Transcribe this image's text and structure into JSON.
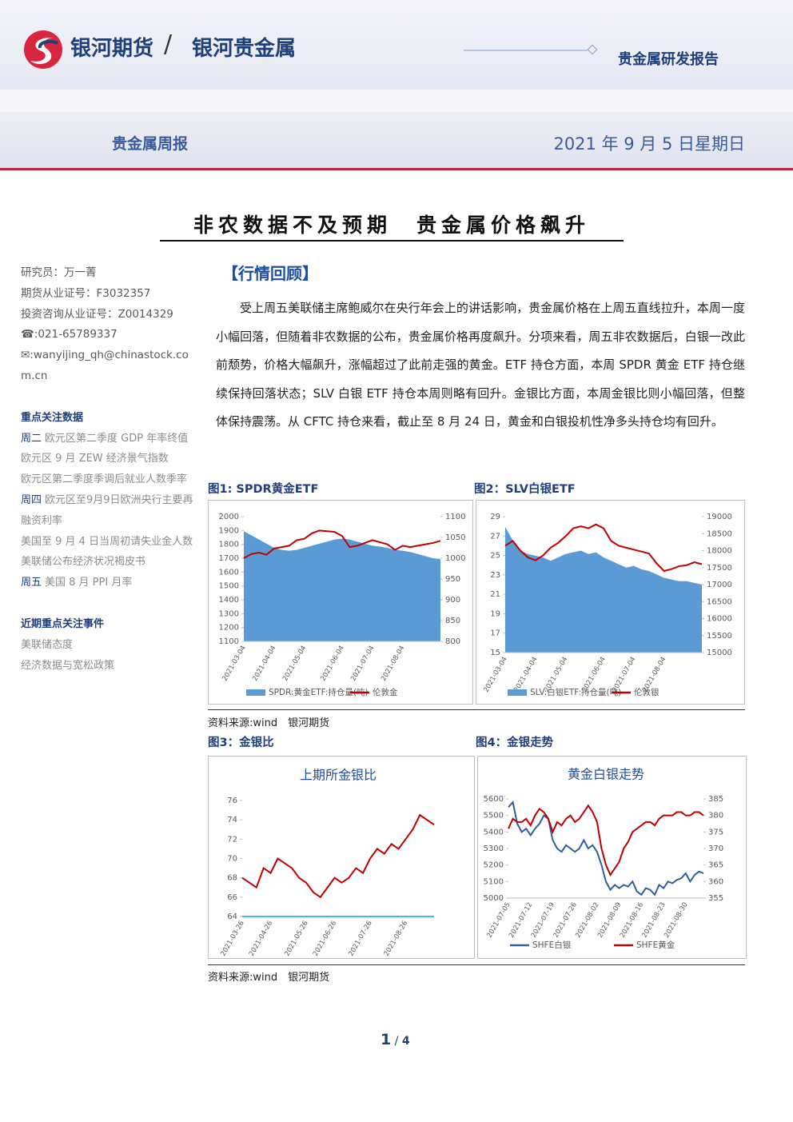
{
  "header": {
    "brand": "银河期货",
    "sub_brand": "银河贵金属",
    "report_type": "贵金属研发报告",
    "report_name": "贵金属周报",
    "date": "2021 年 9 月 5 日星期日"
  },
  "title": "非农数据不及预期　贵金属价格飙升",
  "sidebar": {
    "researcher": [
      "研究员：万一菁",
      "期货从业证号：F3032357",
      "投资咨询从业证号：Z0014329",
      "☎:021-65789337",
      "✉:wanyijing_qh@chinastock.com.cn"
    ],
    "focus_title": "重点关注数据",
    "focus_items": [
      {
        "day": "周二",
        "text": "欧元区第二季度 GDP 年率终值"
      },
      {
        "text": "欧元区 9 月 ZEW 经济景气指数"
      },
      {
        "text": "欧元区第二季度季调后就业人数季率"
      },
      {
        "day": "周四",
        "text": "欧元区至9月9日欧洲央行主要再融资利率"
      },
      {
        "text": "美国至 9 月 4 日当周初请失业金人数"
      },
      {
        "text": "美联储公布经济状况褐皮书"
      },
      {
        "day": "周五",
        "text": "美国 8 月 PPI 月率"
      }
    ],
    "events_title": "近期重点关注事件",
    "events": [
      "美联储态度",
      "经济数据与宽松政策"
    ]
  },
  "section": {
    "heading": "【行情回顾】",
    "paragraph": "受上周五美联储主席鲍威尔在央行年会上的讲话影响，贵金属价格在上周五直线拉升，本周一度小幅回落，但随着非农数据的公布，贵金属价格再度飙升。分项来看，周五非农数据后，白银一改此前颓势，价格大幅飙升，涨幅超过了此前走强的黄金。ETF 持仓方面，本周 SPDR 黄金 ETF 持仓继续保持回落状态；SLV 白银 ETF 持仓本周则略有回升。金银比方面，本周金银比则小幅回落，但整体保持震荡。从 CFTC 持仓来看，截止至 8 月 24 日，黄金和白银投机性净多头持仓均有回升。"
  },
  "figures": [
    {
      "label": "图1: SPDR黄金ETF",
      "chart": {
        "type": "combo",
        "categories": [
          "2021-03-04",
          null,
          null,
          null,
          "2021-04-04",
          null,
          null,
          null,
          "2021-05-04",
          null,
          null,
          null,
          null,
          "2021-06-04",
          null,
          null,
          null,
          "2021-07-04",
          null,
          null,
          null,
          "2021-08-04",
          null,
          null,
          null,
          null,
          null
        ],
        "ylim": [
          1100,
          2000
        ],
        "yticks": [
          1100,
          1200,
          1300,
          1400,
          1500,
          1600,
          1700,
          1800,
          1900,
          2000
        ],
        "y2lim": [
          800,
          1100
        ],
        "y2ticks": [
          800,
          850,
          900,
          950,
          1000,
          1050,
          1100
        ],
        "legend": "bottom",
        "series": [
          {
            "name": "SPDR:黄金ETF:持仓量(吨)",
            "type": "area",
            "axis": "y2",
            "color": "#5b9bd5",
            "values": [
              1065,
              1055,
              1045,
              1035,
              1025,
              1020,
              1018,
              1020,
              1025,
              1030,
              1035,
              1040,
              1045,
              1047,
              1045,
              1040,
              1035,
              1030,
              1028,
              1025,
              1020,
              1018,
              1015,
              1010,
              1005,
              1000,
              998
            ]
          },
          {
            "name": "伦敦金",
            "type": "line",
            "color": "#c00000",
            "values": [
              1700,
              1730,
              1740,
              1725,
              1770,
              1780,
              1790,
              1830,
              1840,
              1880,
              1900,
              1895,
              1890,
              1860,
              1780,
              1790,
              1810,
              1830,
              1815,
              1800,
              1760,
              1790,
              1780,
              1790,
              1800,
              1810,
              1825
            ]
          }
        ]
      }
    },
    {
      "label": "图2：SLV白银ETF",
      "chart": {
        "type": "combo",
        "categories": [
          "2021-03-04",
          null,
          null,
          null,
          "2021-04-04",
          null,
          null,
          null,
          "2021-05-04",
          null,
          null,
          null,
          null,
          "2021-06-04",
          null,
          null,
          null,
          "2021-07-04",
          null,
          null,
          null,
          "2021-08-04",
          null,
          null,
          null,
          null,
          null
        ],
        "ylim": [
          15,
          29
        ],
        "yticks": [
          15,
          17,
          19,
          21,
          23,
          25,
          27,
          29
        ],
        "y2lim": [
          15000,
          19000
        ],
        "y2ticks": [
          15000,
          15500,
          16000,
          16500,
          17000,
          17500,
          18000,
          18500,
          19000
        ],
        "legend": "bottom",
        "series": [
          {
            "name": "SLV:白银ETF:持仓量(吨)",
            "type": "area",
            "axis": "y2",
            "color": "#5b9bd5",
            "values": [
              18700,
              18300,
              18000,
              17900,
              17850,
              17800,
              17700,
              17800,
              17900,
              17950,
              18000,
              17900,
              17950,
              17800,
              17700,
              17600,
              17500,
              17550,
              17450,
              17400,
              17300,
              17200,
              17150,
              17100,
              17100,
              17050,
              17000
            ]
          },
          {
            "name": "伦敦银",
            "type": "line",
            "color": "#c00000",
            "values": [
              26.0,
              26.5,
              25.5,
              24.8,
              24.5,
              25.0,
              25.8,
              26.3,
              27.0,
              27.8,
              28.0,
              27.8,
              28.2,
              27.8,
              26.5,
              26.0,
              25.8,
              25.6,
              25.4,
              25.2,
              24.2,
              23.4,
              23.6,
              23.9,
              24.0,
              24.3,
              24.1
            ]
          }
        ]
      }
    },
    {
      "label": "图3：金银比",
      "chart": {
        "type": "line",
        "title": "上期所金银比",
        "axis_color": "#00b0c0",
        "categories": [
          "2021-03-26",
          null,
          null,
          null,
          "2021-04-26",
          null,
          null,
          null,
          null,
          "2021-05-26",
          null,
          null,
          null,
          "2021-06-26",
          null,
          null,
          null,
          null,
          "2021-07-26",
          null,
          null,
          null,
          null,
          "2021-08-26",
          null,
          null,
          null,
          null
        ],
        "ylim": [
          64,
          76
        ],
        "yticks": [
          64,
          66,
          68,
          70,
          72,
          74,
          76
        ],
        "series": [
          {
            "type": "line",
            "color": "#c00000",
            "values": [
              68,
              67.5,
              67,
              69,
              68.5,
              70,
              69.5,
              69,
              68,
              67.5,
              66.5,
              66,
              67,
              68,
              67.5,
              68,
              69,
              68.5,
              70,
              71,
              70.5,
              71.5,
              71,
              72,
              73,
              74.5,
              74,
              73.5
            ]
          }
        ]
      }
    },
    {
      "label": "图4：金银走势",
      "chart": {
        "type": "combo",
        "title": "黄金白银走势",
        "categories": [
          "2021-07-05",
          null,
          null,
          null,
          null,
          "2021-07-12",
          null,
          null,
          null,
          null,
          "2021-07-19",
          null,
          null,
          null,
          null,
          "2021-07-26",
          null,
          null,
          null,
          null,
          "2021-08-02",
          null,
          null,
          null,
          null,
          "2021-08-09",
          null,
          null,
          null,
          null,
          "2021-08-16",
          null,
          null,
          null,
          null,
          "2021-08-23",
          null,
          null,
          null,
          null,
          "2021-08-30",
          null,
          null,
          null,
          null
        ],
        "ylim": [
          5000,
          5600
        ],
        "yticks": [
          5000,
          5100,
          5200,
          5300,
          5400,
          5500,
          5600
        ],
        "y2lim": [
          355,
          385
        ],
        "y2ticks": [
          355,
          360,
          365,
          370,
          375,
          380,
          385
        ],
        "legend": "bottom",
        "series": [
          {
            "name": "SHFE白银",
            "type": "line",
            "color": "#2e5f9e",
            "values": [
              5550,
              5580,
              5450,
              5400,
              5420,
              5380,
              5420,
              5450,
              5500,
              5480,
              5350,
              5300,
              5280,
              5320,
              5300,
              5280,
              5300,
              5350,
              5300,
              5320,
              5280,
              5200,
              5100,
              5050,
              5080,
              5060,
              5080,
              5070,
              5100,
              5040,
              5020,
              5060,
              5050,
              5020,
              5080,
              5060,
              5100,
              5090,
              5110,
              5120,
              5150,
              5100,
              5140,
              5160,
              5150
            ]
          },
          {
            "name": "SHFE黄金",
            "type": "line",
            "axis": "y2",
            "color": "#c00000",
            "values": [
              376,
              379,
              378,
              378,
              379,
              377,
              380,
              382,
              381,
              379,
              375,
              378,
              377,
              379,
              380,
              378,
              379,
              381,
              383,
              381,
              378,
              370,
              365,
              362,
              364,
              366,
              370,
              372,
              375,
              376,
              377,
              378,
              378,
              377,
              379,
              380,
              380,
              380,
              381,
              381,
              380,
              380,
              381,
              381,
              380
            ]
          }
        ]
      }
    }
  ],
  "sources": [
    "资料来源:wind　银河期货",
    "资料来源:wind　银河期货"
  ],
  "page": {
    "current": "1",
    "total": "4"
  }
}
